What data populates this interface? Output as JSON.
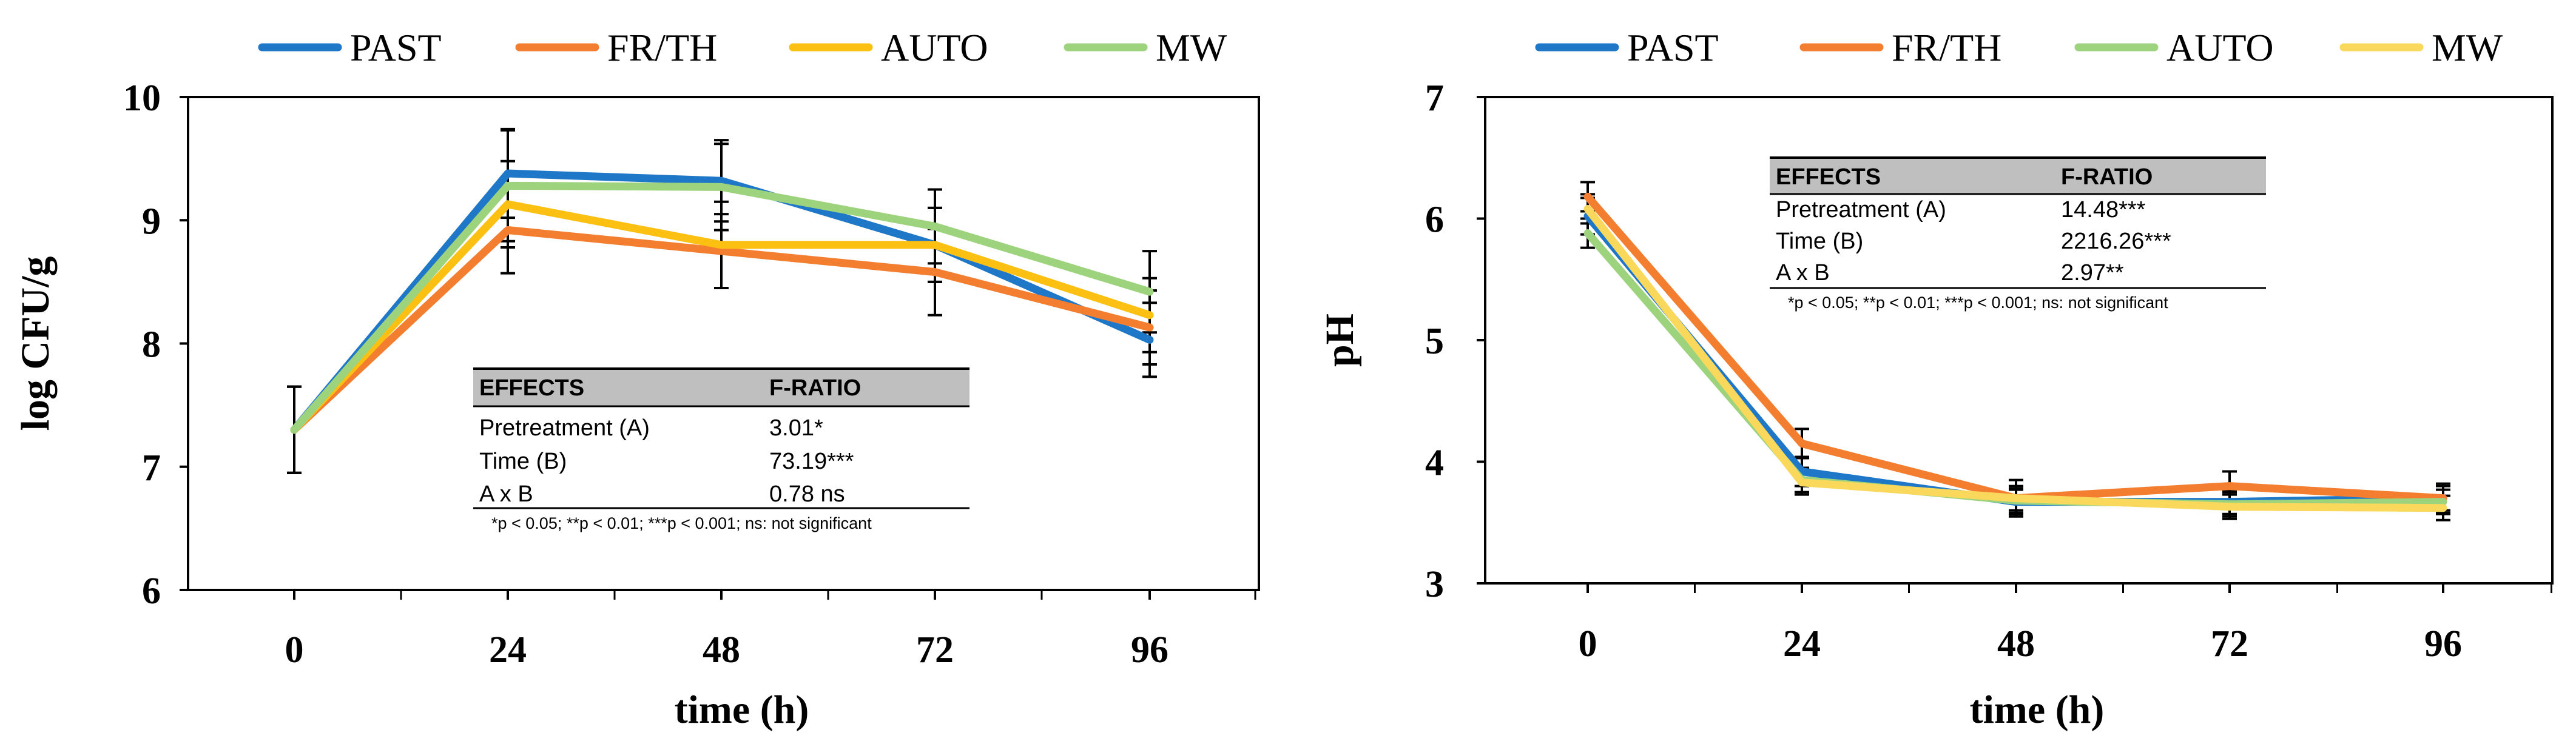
{
  "chart_data": [
    {
      "type": "line",
      "xlabel": "time (h)",
      "ylabel": "log CFU/g",
      "ylim": [
        6,
        10
      ],
      "yticks": [
        "6",
        "7",
        "8",
        "9",
        "10"
      ],
      "categories": [
        "0",
        "24",
        "48",
        "72",
        "96"
      ],
      "x": [
        0,
        24,
        48,
        72,
        96
      ],
      "legend_position": "top",
      "error_bars": true,
      "series": [
        {
          "name": "PAST",
          "color": "#1f77c8",
          "values": [
            7.3,
            9.38,
            9.32,
            8.8,
            8.03
          ],
          "err": [
            0.35,
            0.36,
            0.33,
            0.3,
            0.3
          ]
        },
        {
          "name": "FR/TH",
          "color": "#f47e30",
          "values": [
            7.3,
            8.92,
            8.75,
            8.58,
            8.13
          ],
          "err": [
            0.35,
            0.35,
            0.3,
            0.35,
            0.3
          ]
        },
        {
          "name": "AUTO",
          "color": "#fcc012",
          "values": [
            7.3,
            9.13,
            8.8,
            8.8,
            8.23
          ],
          "err": [
            0.35,
            0.35,
            0.35,
            0.3,
            0.3
          ]
        },
        {
          "name": "MW",
          "color": "#9ed37d",
          "values": [
            7.3,
            9.28,
            9.27,
            8.95,
            8.42
          ],
          "err": [
            0.35,
            0.45,
            0.35,
            0.3,
            0.33
          ]
        }
      ],
      "stats_table": {
        "header": [
          "EFFECTS",
          "F-RATIO"
        ],
        "rows": [
          [
            "Pretreatment (A)",
            "3.01*"
          ],
          [
            "Time (B)",
            "73.19***"
          ],
          [
            "A x B",
            "0.78 ns"
          ]
        ],
        "note": "*p < 0.05; **p < 0.01; ***p < 0.001; ns: not significant"
      }
    },
    {
      "type": "line",
      "xlabel": "time (h)",
      "ylabel": "pH",
      "ylim": [
        3,
        7
      ],
      "yticks": [
        "3",
        "4",
        "5",
        "6",
        "7"
      ],
      "categories": [
        "0",
        "24",
        "48",
        "72",
        "96"
      ],
      "x": [
        0,
        24,
        48,
        72,
        96
      ],
      "legend_position": "top",
      "error_bars": true,
      "series": [
        {
          "name": "PAST",
          "color": "#1f77c8",
          "values": [
            6.02,
            3.92,
            3.67,
            3.67,
            3.7
          ],
          "err": [
            0.15,
            0.12,
            0.1,
            0.1,
            0.1
          ]
        },
        {
          "name": "FR/TH",
          "color": "#f47e30",
          "values": [
            6.18,
            4.15,
            3.7,
            3.8,
            3.7
          ],
          "err": [
            0.12,
            0.12,
            0.15,
            0.12,
            0.12
          ]
        },
        {
          "name": "AUTO",
          "color": "#9ed37d",
          "values": [
            5.88,
            3.85,
            3.68,
            3.65,
            3.67
          ],
          "err": [
            0.12,
            0.1,
            0.1,
            0.1,
            0.1
          ]
        },
        {
          "name": "MW",
          "color": "#fad85c",
          "values": [
            6.08,
            3.83,
            3.7,
            3.63,
            3.62
          ],
          "err": [
            0.12,
            0.1,
            0.1,
            0.1,
            0.1
          ]
        }
      ],
      "stats_table": {
        "header": [
          "EFFECTS",
          "F-RATIO"
        ],
        "rows": [
          [
            "Pretreatment (A)",
            "14.48***"
          ],
          [
            "Time (B)",
            "2216.26***"
          ],
          [
            "A x B",
            "2.97**"
          ]
        ],
        "note": "*p < 0.05; **p < 0.01; ***p < 0.001; ns: not significant"
      }
    }
  ]
}
